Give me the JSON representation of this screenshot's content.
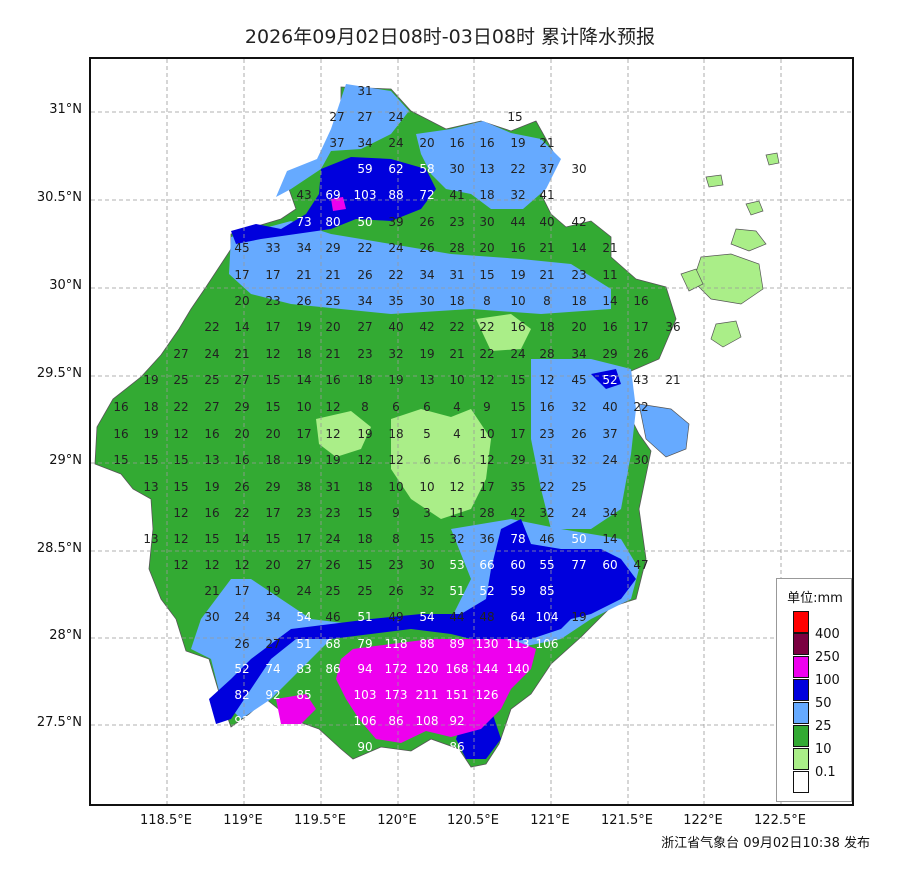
{
  "title": "2026年09月02日08时-03日08时 累计降水预报",
  "credit": "浙江省气象台 09月02日10:38 发布",
  "y_labels": [
    "31°N",
    "30.5°N",
    "30°N",
    "29.5°N",
    "29°N",
    "28.5°N",
    "28°N",
    "27.5°N"
  ],
  "x_labels": [
    "118.5°E",
    "119°E",
    "119.5°E",
    "120°E",
    "120.5°E",
    "121°E",
    "121.5°E",
    "122°E",
    "122.5°E"
  ],
  "legend": {
    "title": "单位:mm",
    "items": [
      {
        "label": "400",
        "color": "#ff0000"
      },
      {
        "label": "250",
        "color": "#7a0040"
      },
      {
        "label": "100",
        "color": "#ee00ee"
      },
      {
        "label": "50",
        "color": "#0000dd"
      },
      {
        "label": "25",
        "color": "#66aaff"
      },
      {
        "label": "10",
        "color": "#33aa33"
      },
      {
        "label": "0.1",
        "color": "#aaee88"
      },
      {
        "label": "",
        "color": "#ffffff"
      }
    ]
  },
  "colors": {
    "light_green": "#aaee88",
    "green": "#33aa33",
    "light_blue": "#66aaff",
    "blue": "#0000dd",
    "magenta": "#ee00ee"
  },
  "station_values": [
    "31",
    "27",
    "27",
    "24",
    "15",
    "37",
    "34",
    "24",
    "20",
    "16",
    "16",
    "19",
    "21",
    "59",
    "62",
    "58",
    "30",
    "13",
    "22",
    "37",
    "30",
    "43",
    "69",
    "103",
    "88",
    "72",
    "41",
    "18",
    "32",
    "41",
    "73",
    "80",
    "50",
    "39",
    "26",
    "23",
    "30",
    "44",
    "40",
    "42",
    "45",
    "33",
    "34",
    "29",
    "22",
    "24",
    "26",
    "28",
    "20",
    "16",
    "21",
    "14",
    "21",
    "17",
    "17",
    "21",
    "21",
    "26",
    "22",
    "34",
    "31",
    "15",
    "19",
    "21",
    "23",
    "11",
    "20",
    "23",
    "26",
    "25",
    "34",
    "35",
    "30",
    "18",
    "8",
    "10",
    "8",
    "18",
    "14",
    "16",
    "22",
    "14",
    "17",
    "19",
    "20",
    "27",
    "40",
    "42",
    "22",
    "22",
    "16",
    "18",
    "20",
    "16",
    "17",
    "36",
    "27",
    "24",
    "21",
    "12",
    "18",
    "21",
    "23",
    "32",
    "19",
    "21",
    "22",
    "24",
    "28",
    "34",
    "29",
    "26",
    "19",
    "25",
    "25",
    "27",
    "15",
    "14",
    "16",
    "18",
    "19",
    "13",
    "10",
    "12",
    "15",
    "12",
    "45",
    "52",
    "43",
    "21",
    "16",
    "18",
    "22",
    "27",
    "29",
    "15",
    "10",
    "12",
    "8",
    "6",
    "6",
    "4",
    "9",
    "15",
    "16",
    "32",
    "40",
    "22",
    "16",
    "19",
    "12",
    "16",
    "20",
    "20",
    "17",
    "12",
    "19",
    "18",
    "5",
    "4",
    "10",
    "17",
    "23",
    "26",
    "37",
    "15",
    "15",
    "15",
    "13",
    "16",
    "18",
    "19",
    "19",
    "12",
    "12",
    "6",
    "6",
    "12",
    "29",
    "31",
    "32",
    "24",
    "30",
    "13",
    "15",
    "19",
    "26",
    "29",
    "38",
    "31",
    "18",
    "10",
    "10",
    "12",
    "17",
    "35",
    "22",
    "25",
    "12",
    "16",
    "22",
    "17",
    "23",
    "23",
    "15",
    "9",
    "3",
    "11",
    "28",
    "42",
    "32",
    "24",
    "34",
    "13",
    "12",
    "15",
    "14",
    "15",
    "17",
    "24",
    "18",
    "8",
    "15",
    "32",
    "36",
    "78",
    "46",
    "50",
    "14",
    "12",
    "12",
    "12",
    "20",
    "27",
    "26",
    "15",
    "23",
    "30",
    "53",
    "66",
    "60",
    "55",
    "77",
    "60",
    "47",
    "21",
    "17",
    "19",
    "24",
    "25",
    "25",
    "26",
    "32",
    "51",
    "52",
    "59",
    "85",
    "30",
    "24",
    "34",
    "54",
    "46",
    "51",
    "49",
    "54",
    "44",
    "48",
    "64",
    "104",
    "19",
    "26",
    "27",
    "51",
    "68",
    "79",
    "118",
    "88",
    "89",
    "130",
    "113",
    "106",
    "52",
    "74",
    "83",
    "86",
    "94",
    "172",
    "120",
    "168",
    "144",
    "140",
    "82",
    "92",
    "85",
    "103",
    "173",
    "211",
    "151",
    "126",
    "92",
    "92",
    "106",
    "86",
    "108",
    "92",
    "90",
    "86"
  ]
}
